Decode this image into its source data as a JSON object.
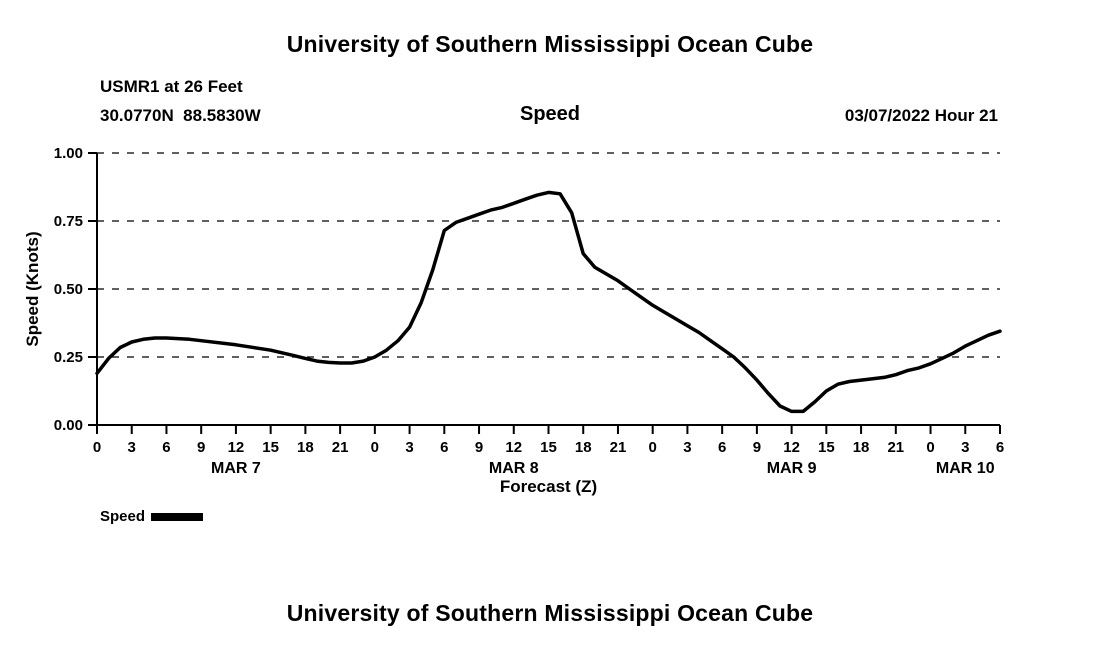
{
  "page": {
    "top_title": "University of Southern Mississippi Ocean Cube",
    "bottom_title": "University of Southern Mississippi Ocean Cube"
  },
  "header": {
    "station_line1": "USMR1 at 26 Feet",
    "station_line2": "30.0770N  88.5830W",
    "plot_label": "Speed",
    "datetime_label": "03/07/2022 Hour 21"
  },
  "legend": {
    "label": "Speed",
    "line_color": "#000000"
  },
  "chart_data": {
    "type": "line",
    "title": "Speed",
    "xlabel": "Forecast (Z)",
    "ylabel": "Speed (Knots)",
    "ylim": [
      0,
      1
    ],
    "ytick_labels": [
      "0.00",
      "0.25",
      "0.50",
      "0.75",
      "1.00"
    ],
    "ytick_values": [
      0,
      0.25,
      0.5,
      0.75,
      1
    ],
    "x_hours_range": [
      0,
      78
    ],
    "grid": "dashed-horizontal",
    "axis_color": "#000000",
    "xticks": [
      {
        "hour": 0,
        "label": "0"
      },
      {
        "hour": 3,
        "label": "3"
      },
      {
        "hour": 6,
        "label": "6"
      },
      {
        "hour": 9,
        "label": "9"
      },
      {
        "hour": 12,
        "label": "12"
      },
      {
        "hour": 15,
        "label": "15"
      },
      {
        "hour": 18,
        "label": "18"
      },
      {
        "hour": 21,
        "label": "21"
      },
      {
        "hour": 24,
        "label": "0"
      },
      {
        "hour": 27,
        "label": "3"
      },
      {
        "hour": 30,
        "label": "6"
      },
      {
        "hour": 33,
        "label": "9"
      },
      {
        "hour": 36,
        "label": "12"
      },
      {
        "hour": 39,
        "label": "15"
      },
      {
        "hour": 42,
        "label": "18"
      },
      {
        "hour": 45,
        "label": "21"
      },
      {
        "hour": 48,
        "label": "0"
      },
      {
        "hour": 51,
        "label": "3"
      },
      {
        "hour": 54,
        "label": "6"
      },
      {
        "hour": 57,
        "label": "9"
      },
      {
        "hour": 60,
        "label": "12"
      },
      {
        "hour": 63,
        "label": "15"
      },
      {
        "hour": 66,
        "label": "18"
      },
      {
        "hour": 69,
        "label": "21"
      },
      {
        "hour": 72,
        "label": "0"
      },
      {
        "hour": 75,
        "label": "3"
      },
      {
        "hour": 78,
        "label": "6"
      }
    ],
    "day_labels": [
      {
        "label": "MAR 7",
        "hour": 12
      },
      {
        "label": "MAR 8",
        "hour": 36
      },
      {
        "label": "MAR 9",
        "hour": 60
      },
      {
        "label": "MAR 10",
        "hour": 75
      }
    ],
    "series": [
      {
        "name": "Speed",
        "color": "#000000",
        "points": [
          [
            0,
            0.19
          ],
          [
            1,
            0.245
          ],
          [
            2,
            0.285
          ],
          [
            3,
            0.305
          ],
          [
            4,
            0.315
          ],
          [
            5,
            0.32
          ],
          [
            6,
            0.32
          ],
          [
            8,
            0.315
          ],
          [
            9,
            0.31
          ],
          [
            12,
            0.295
          ],
          [
            15,
            0.275
          ],
          [
            17,
            0.255
          ],
          [
            18,
            0.245
          ],
          [
            19,
            0.235
          ],
          [
            20,
            0.23
          ],
          [
            21,
            0.228
          ],
          [
            22,
            0.228
          ],
          [
            23,
            0.235
          ],
          [
            24,
            0.25
          ],
          [
            25,
            0.275
          ],
          [
            26,
            0.31
          ],
          [
            27,
            0.36
          ],
          [
            28,
            0.45
          ],
          [
            29,
            0.57
          ],
          [
            30,
            0.715
          ],
          [
            31,
            0.745
          ],
          [
            32,
            0.76
          ],
          [
            33,
            0.775
          ],
          [
            34,
            0.79
          ],
          [
            35,
            0.8
          ],
          [
            36,
            0.815
          ],
          [
            37,
            0.83
          ],
          [
            38,
            0.845
          ],
          [
            39,
            0.855
          ],
          [
            40,
            0.85
          ],
          [
            41,
            0.78
          ],
          [
            42,
            0.63
          ],
          [
            43,
            0.58
          ],
          [
            44,
            0.555
          ],
          [
            45,
            0.53
          ],
          [
            46,
            0.5
          ],
          [
            47,
            0.47
          ],
          [
            48,
            0.44
          ],
          [
            49,
            0.415
          ],
          [
            50,
            0.39
          ],
          [
            51,
            0.365
          ],
          [
            52,
            0.34
          ],
          [
            53,
            0.31
          ],
          [
            54,
            0.28
          ],
          [
            55,
            0.25
          ],
          [
            56,
            0.21
          ],
          [
            57,
            0.165
          ],
          [
            58,
            0.115
          ],
          [
            59,
            0.07
          ],
          [
            60,
            0.05
          ],
          [
            61,
            0.05
          ],
          [
            62,
            0.085
          ],
          [
            63,
            0.125
          ],
          [
            64,
            0.15
          ],
          [
            65,
            0.16
          ],
          [
            66,
            0.165
          ],
          [
            67,
            0.17
          ],
          [
            68,
            0.175
          ],
          [
            69,
            0.185
          ],
          [
            70,
            0.2
          ],
          [
            71,
            0.21
          ],
          [
            72,
            0.225
          ],
          [
            73,
            0.245
          ],
          [
            74,
            0.265
          ],
          [
            75,
            0.29
          ],
          [
            76,
            0.31
          ],
          [
            77,
            0.33
          ],
          [
            78,
            0.345
          ]
        ]
      }
    ]
  }
}
